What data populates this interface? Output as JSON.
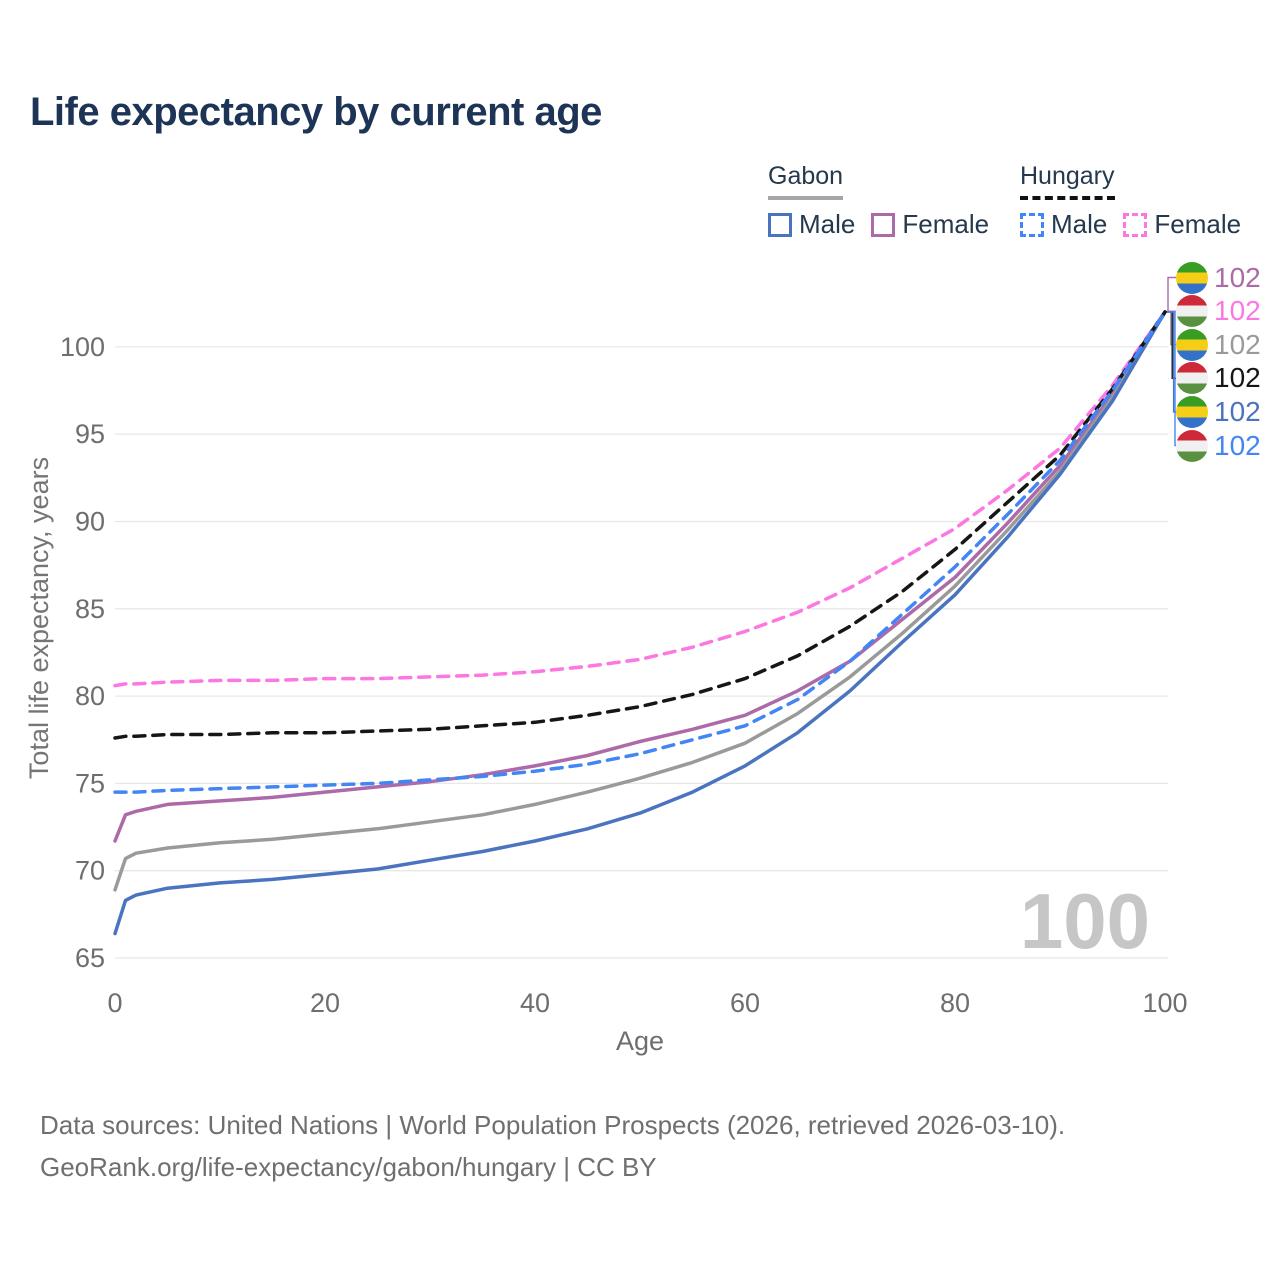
{
  "title": "Life expectancy by current age",
  "legend": {
    "gabon": {
      "label": "Gabon",
      "male": "Male",
      "female": "Female"
    },
    "hungary": {
      "label": "Hungary",
      "male": "Male",
      "female": "Female"
    }
  },
  "footer": {
    "line1": "Data sources: United Nations | World Population Prospects (2026, retrieved 2026-03-10).",
    "line2": "GeoRank.org/life-expectancy/gabon/hungary | CC BY"
  },
  "colors": {
    "title_text": "#1d3456",
    "legend_text": "#25394e",
    "tick_text": "#6e6e6e",
    "axis_title_text": "#757575",
    "gridline": "#e8e8e8",
    "watermark": "#c6c6c6",
    "gabon_male": "#4a74c0",
    "gabon_female": "#ad6aa8",
    "gabon_total": "#9a9a9a",
    "hungary_male": "#4286f5",
    "hungary_female": "#fc77e2",
    "hungary_total": "#161616"
  },
  "flags": {
    "gabon": [
      "#3a9d23",
      "#f7ce17",
      "#3472c9"
    ],
    "hungary": [
      "#ce2939",
      "#f0f0f0",
      "#5a9140"
    ]
  },
  "chart_data": {
    "type": "line",
    "title": "Life expectancy by current age",
    "xlabel": "Age",
    "ylabel": "Total life expectancy, years",
    "x_ticks": [
      0,
      20,
      40,
      60,
      80,
      100
    ],
    "y_ticks": [
      65,
      70,
      75,
      80,
      85,
      90,
      95,
      100
    ],
    "xlim": [
      0,
      100
    ],
    "ylim": [
      65,
      105
    ],
    "grid": true,
    "legend_position": "top-right",
    "age_counter_watermark": "100",
    "x": [
      0,
      1,
      2,
      5,
      10,
      15,
      20,
      25,
      30,
      35,
      40,
      45,
      50,
      55,
      60,
      65,
      70,
      75,
      80,
      85,
      90,
      95,
      100
    ],
    "series": [
      {
        "name": "Gabon Female",
        "country": "gabon",
        "sex": "Female",
        "style": "solid",
        "color": "#ad6aa8",
        "end_label": "102",
        "values": [
          71.7,
          73.2,
          73.4,
          73.8,
          74.0,
          74.2,
          74.5,
          74.8,
          75.1,
          75.5,
          76.0,
          76.6,
          77.4,
          78.1,
          78.9,
          80.3,
          82.0,
          84.4,
          86.8,
          89.9,
          93.2,
          97.3,
          102
        ]
      },
      {
        "name": "Hungary Female",
        "country": "hungary",
        "sex": "Female",
        "style": "dashed",
        "color": "#fc77e2",
        "end_label": "102",
        "values": [
          80.6,
          80.7,
          80.7,
          80.8,
          80.9,
          80.9,
          81.0,
          81.0,
          81.1,
          81.2,
          81.4,
          81.7,
          82.1,
          82.8,
          83.7,
          84.8,
          86.2,
          87.9,
          89.6,
          91.8,
          94.2,
          97.8,
          102
        ]
      },
      {
        "name": "Gabon Total",
        "country": "gabon",
        "sex": "Both",
        "style": "solid",
        "color": "#9a9a9a",
        "end_label": "102",
        "values": [
          68.9,
          70.7,
          71.0,
          71.3,
          71.6,
          71.8,
          72.1,
          72.4,
          72.8,
          73.2,
          73.8,
          74.5,
          75.3,
          76.2,
          77.3,
          79.0,
          81.1,
          83.6,
          86.3,
          89.5,
          92.9,
          97.1,
          102
        ]
      },
      {
        "name": "Hungary Total",
        "country": "hungary",
        "sex": "Both",
        "style": "dashed",
        "color": "#161616",
        "end_label": "102",
        "values": [
          77.6,
          77.7,
          77.7,
          77.8,
          77.8,
          77.9,
          77.9,
          78.0,
          78.1,
          78.3,
          78.5,
          78.9,
          79.4,
          80.1,
          81.0,
          82.3,
          84.0,
          86.0,
          88.4,
          91.1,
          93.8,
          97.6,
          102
        ]
      },
      {
        "name": "Gabon Male",
        "country": "gabon",
        "sex": "Male",
        "style": "solid",
        "color": "#4a74c0",
        "end_label": "102",
        "values": [
          66.4,
          68.3,
          68.6,
          69.0,
          69.3,
          69.5,
          69.8,
          70.1,
          70.6,
          71.1,
          71.7,
          72.4,
          73.3,
          74.5,
          76.0,
          77.9,
          80.3,
          83.1,
          85.8,
          89.1,
          92.7,
          96.9,
          102
        ]
      },
      {
        "name": "Hungary Male",
        "country": "hungary",
        "sex": "Male",
        "style": "dashed",
        "color": "#4286f5",
        "end_label": "102",
        "values": [
          74.5,
          74.5,
          74.5,
          74.6,
          74.7,
          74.8,
          74.9,
          75.0,
          75.2,
          75.4,
          75.7,
          76.1,
          76.7,
          77.5,
          78.3,
          79.8,
          82.0,
          84.7,
          87.4,
          90.4,
          93.5,
          97.5,
          102
        ]
      }
    ]
  }
}
